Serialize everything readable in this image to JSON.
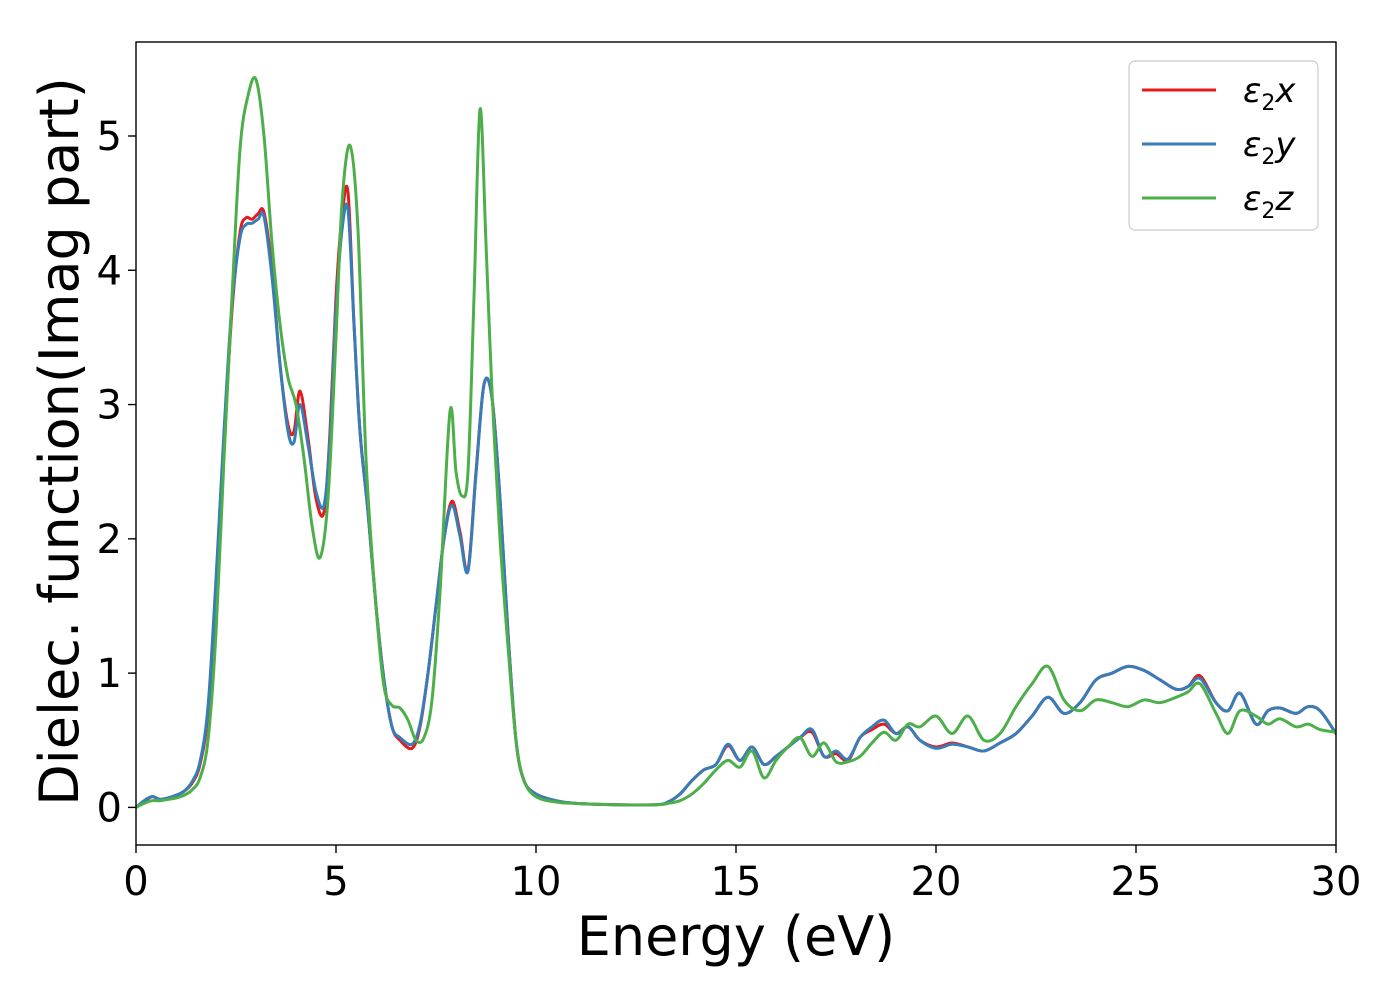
{
  "chart_data": {
    "type": "line",
    "title": "",
    "xlabel": "Energy (eV)",
    "ylabel": "Dielec. function(Imag part)",
    "xlim": [
      0,
      30
    ],
    "ylim": [
      -0.28,
      5.7
    ],
    "xticks": [
      0,
      5,
      10,
      15,
      20,
      25,
      30
    ],
    "xtick_labels": [
      "0",
      "5",
      "10",
      "15",
      "20",
      "25",
      "30"
    ],
    "yticks": [
      0,
      1,
      2,
      3,
      4,
      5
    ],
    "ytick_labels": [
      "0",
      "1",
      "2",
      "3",
      "4",
      "5"
    ],
    "grid": false,
    "legend_position": "top-right",
    "series": [
      {
        "name": "ε2x",
        "legend_main": "ε",
        "legend_sub": "2",
        "legend_tail": "x",
        "color": "#e41a1c",
        "x": [
          0,
          0.2,
          0.4,
          0.6,
          0.8,
          1.0,
          1.2,
          1.4,
          1.6,
          1.8,
          2.0,
          2.2,
          2.4,
          2.6,
          2.75,
          2.9,
          3.05,
          3.2,
          3.4,
          3.6,
          3.8,
          3.95,
          4.1,
          4.3,
          4.5,
          4.7,
          4.85,
          5.0,
          5.15,
          5.3,
          5.45,
          5.6,
          5.8,
          6.0,
          6.2,
          6.4,
          6.6,
          6.9,
          7.1,
          7.3,
          7.5,
          7.7,
          7.9,
          8.1,
          8.3,
          8.5,
          8.7,
          8.9,
          9.1,
          9.3,
          9.5,
          9.7,
          10.0,
          10.5,
          11.0,
          12.0,
          13.0,
          13.3,
          13.6,
          13.9,
          14.2,
          14.5,
          14.8,
          15.1,
          15.4,
          15.7,
          16.0,
          16.3,
          16.6,
          16.9,
          17.2,
          17.5,
          17.8,
          18.1,
          18.4,
          18.7,
          19.0,
          19.3,
          19.6,
          20.0,
          20.4,
          20.8,
          21.2,
          21.6,
          22.0,
          22.4,
          22.8,
          23.2,
          23.6,
          24.0,
          24.4,
          24.8,
          25.2,
          25.6,
          26.0,
          26.3,
          26.6,
          27.0,
          27.3,
          27.6,
          28.0,
          28.3,
          28.6,
          29.0,
          29.3,
          29.6,
          30.0
        ],
        "y": [
          0.0,
          0.04,
          0.08,
          0.06,
          0.07,
          0.09,
          0.12,
          0.18,
          0.32,
          0.7,
          1.6,
          2.7,
          3.7,
          4.28,
          4.39,
          4.38,
          4.42,
          4.43,
          4.0,
          3.3,
          2.85,
          2.8,
          3.1,
          2.75,
          2.3,
          2.2,
          2.8,
          3.8,
          4.4,
          4.58,
          3.6,
          2.8,
          2.2,
          1.5,
          0.95,
          0.6,
          0.5,
          0.44,
          0.6,
          1.0,
          1.5,
          2.0,
          2.28,
          2.05,
          1.77,
          2.5,
          3.15,
          3.05,
          2.3,
          1.3,
          0.5,
          0.2,
          0.1,
          0.05,
          0.03,
          0.02,
          0.02,
          0.04,
          0.1,
          0.2,
          0.28,
          0.32,
          0.46,
          0.35,
          0.45,
          0.32,
          0.38,
          0.45,
          0.52,
          0.56,
          0.38,
          0.4,
          0.35,
          0.52,
          0.58,
          0.62,
          0.55,
          0.6,
          0.5,
          0.45,
          0.48,
          0.45,
          0.42,
          0.48,
          0.55,
          0.68,
          0.82,
          0.7,
          0.78,
          0.95,
          1.0,
          1.05,
          1.02,
          0.95,
          0.88,
          0.9,
          0.98,
          0.78,
          0.72,
          0.85,
          0.62,
          0.72,
          0.74,
          0.7,
          0.75,
          0.72,
          0.55
        ]
      },
      {
        "name": "ε2y",
        "legend_main": "ε",
        "legend_sub": "2",
        "legend_tail": "y",
        "color": "#377eb8",
        "x": [
          0,
          0.2,
          0.4,
          0.6,
          0.8,
          1.0,
          1.2,
          1.4,
          1.6,
          1.8,
          2.0,
          2.2,
          2.4,
          2.6,
          2.75,
          2.9,
          3.05,
          3.2,
          3.4,
          3.6,
          3.8,
          3.95,
          4.1,
          4.3,
          4.5,
          4.7,
          4.85,
          5.0,
          5.15,
          5.3,
          5.45,
          5.6,
          5.8,
          6.0,
          6.2,
          6.4,
          6.6,
          6.9,
          7.1,
          7.3,
          7.5,
          7.7,
          7.9,
          8.1,
          8.3,
          8.5,
          8.7,
          8.9,
          9.1,
          9.3,
          9.5,
          9.7,
          10.0,
          10.5,
          11.0,
          12.0,
          13.0,
          13.3,
          13.6,
          13.9,
          14.2,
          14.5,
          14.8,
          15.1,
          15.4,
          15.7,
          16.0,
          16.3,
          16.6,
          16.9,
          17.2,
          17.5,
          17.8,
          18.1,
          18.4,
          18.7,
          19.0,
          19.3,
          19.6,
          20.0,
          20.4,
          20.8,
          21.2,
          21.6,
          22.0,
          22.4,
          22.8,
          23.2,
          23.6,
          24.0,
          24.4,
          24.8,
          25.2,
          25.6,
          26.0,
          26.3,
          26.6,
          27.0,
          27.3,
          27.6,
          28.0,
          28.3,
          28.6,
          29.0,
          29.3,
          29.6,
          30.0
        ],
        "y": [
          0.0,
          0.05,
          0.08,
          0.06,
          0.07,
          0.09,
          0.12,
          0.19,
          0.34,
          0.75,
          1.7,
          2.8,
          3.75,
          4.24,
          4.34,
          4.35,
          4.38,
          4.4,
          3.95,
          3.3,
          2.8,
          2.72,
          3.0,
          2.7,
          2.35,
          2.25,
          2.75,
          3.7,
          4.3,
          4.45,
          3.6,
          2.8,
          2.2,
          1.5,
          0.95,
          0.6,
          0.52,
          0.47,
          0.62,
          1.0,
          1.5,
          2.0,
          2.25,
          2.02,
          1.76,
          2.48,
          3.15,
          3.05,
          2.3,
          1.3,
          0.5,
          0.2,
          0.1,
          0.05,
          0.03,
          0.02,
          0.02,
          0.04,
          0.1,
          0.2,
          0.28,
          0.32,
          0.47,
          0.35,
          0.45,
          0.32,
          0.38,
          0.45,
          0.52,
          0.58,
          0.38,
          0.42,
          0.36,
          0.52,
          0.6,
          0.65,
          0.55,
          0.6,
          0.5,
          0.44,
          0.47,
          0.45,
          0.42,
          0.48,
          0.55,
          0.68,
          0.82,
          0.7,
          0.78,
          0.95,
          1.0,
          1.05,
          1.02,
          0.95,
          0.88,
          0.9,
          0.96,
          0.78,
          0.72,
          0.85,
          0.62,
          0.72,
          0.74,
          0.7,
          0.75,
          0.72,
          0.55
        ]
      },
      {
        "name": "ε2z",
        "legend_main": "ε",
        "legend_sub": "2",
        "legend_tail": "z",
        "color": "#4daf4a",
        "x": [
          0,
          0.2,
          0.4,
          0.6,
          0.8,
          1.0,
          1.2,
          1.4,
          1.6,
          1.8,
          2.0,
          2.2,
          2.4,
          2.6,
          2.8,
          3.0,
          3.2,
          3.4,
          3.6,
          3.8,
          4.0,
          4.2,
          4.4,
          4.6,
          4.8,
          5.0,
          5.15,
          5.35,
          5.55,
          5.75,
          6.0,
          6.2,
          6.4,
          6.6,
          6.8,
          7.0,
          7.2,
          7.4,
          7.6,
          7.85,
          8.0,
          8.15,
          8.3,
          8.45,
          8.6,
          8.75,
          8.9,
          9.1,
          9.3,
          9.5,
          9.7,
          10.0,
          10.5,
          11.0,
          12.0,
          13.0,
          13.3,
          13.6,
          13.9,
          14.2,
          14.5,
          14.8,
          15.1,
          15.4,
          15.7,
          16.0,
          16.3,
          16.6,
          16.9,
          17.2,
          17.5,
          17.8,
          18.1,
          18.4,
          18.7,
          19.0,
          19.3,
          19.6,
          20.0,
          20.4,
          20.8,
          21.2,
          21.6,
          22.0,
          22.4,
          22.8,
          23.2,
          23.6,
          24.0,
          24.4,
          24.8,
          25.2,
          25.6,
          26.0,
          26.3,
          26.6,
          27.0,
          27.3,
          27.6,
          28.0,
          28.3,
          28.6,
          29.0,
          29.3,
          29.6,
          30.0
        ],
        "y": [
          0.0,
          0.03,
          0.05,
          0.05,
          0.06,
          0.07,
          0.09,
          0.13,
          0.22,
          0.5,
          1.3,
          2.6,
          3.8,
          4.9,
          5.3,
          5.42,
          5.0,
          4.2,
          3.6,
          3.2,
          3.0,
          2.6,
          2.1,
          1.86,
          2.3,
          3.5,
          4.5,
          4.93,
          4.3,
          2.6,
          1.5,
          0.9,
          0.76,
          0.74,
          0.65,
          0.5,
          0.52,
          0.8,
          1.6,
          2.95,
          2.5,
          2.32,
          2.5,
          3.8,
          5.2,
          4.2,
          3.1,
          2.0,
          1.2,
          0.5,
          0.2,
          0.08,
          0.04,
          0.03,
          0.02,
          0.02,
          0.03,
          0.05,
          0.1,
          0.18,
          0.28,
          0.35,
          0.3,
          0.42,
          0.22,
          0.35,
          0.45,
          0.52,
          0.38,
          0.48,
          0.34,
          0.34,
          0.38,
          0.48,
          0.56,
          0.5,
          0.62,
          0.6,
          0.68,
          0.55,
          0.68,
          0.5,
          0.55,
          0.75,
          0.92,
          1.05,
          0.8,
          0.72,
          0.8,
          0.78,
          0.75,
          0.8,
          0.78,
          0.82,
          0.86,
          0.92,
          0.7,
          0.55,
          0.72,
          0.68,
          0.62,
          0.66,
          0.6,
          0.62,
          0.58,
          0.56
        ]
      }
    ]
  }
}
